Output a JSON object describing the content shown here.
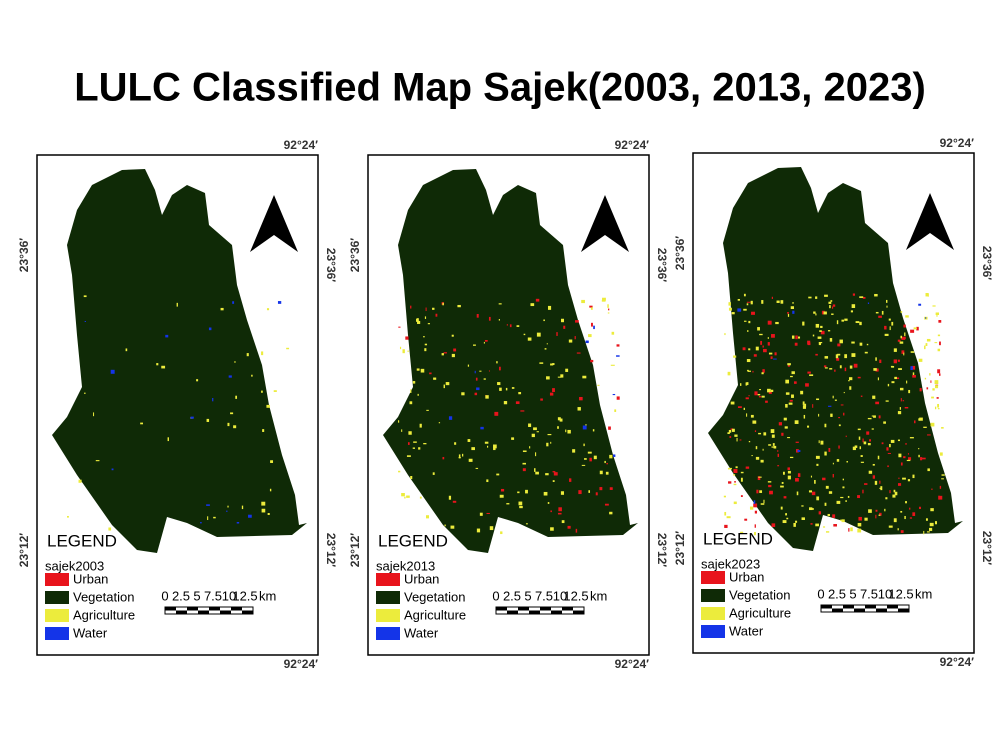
{
  "title": "LULC Classified Map Sajek(2003,  2013,  2023)",
  "panels": [
    {
      "top_longitude": "92°24′",
      "bottom_longitude": "92°24′",
      "left_latitudes": [
        "23°36′",
        "23°12′"
      ],
      "right_latitudes": [
        "23°36′",
        "23°12′"
      ],
      "legend_title": "LEGEND",
      "layer_name": "sajek2003",
      "legend_items": [
        {
          "label": "Urban",
          "color": "#e8141c"
        },
        {
          "label": "Vegetation",
          "color": "#0f2a06"
        },
        {
          "label": "Agriculture",
          "color": "#ecec3c"
        },
        {
          "label": "Water",
          "color": "#1434e8"
        }
      ],
      "scale_labels": [
        "0",
        "2.5",
        "5",
        "7.5",
        "10",
        "12.5"
      ],
      "scale_unit": "km"
    },
    {
      "top_longitude": "92°24′",
      "bottom_longitude": "92°24′",
      "left_latitudes": [
        "23°36′",
        "23°12′"
      ],
      "right_latitudes": [
        "23°36′",
        "23°12′"
      ],
      "legend_title": "LEGEND",
      "layer_name": "sajek2013",
      "legend_items": [
        {
          "label": "Urban",
          "color": "#e8141c"
        },
        {
          "label": "Vegetation",
          "color": "#0f2a06"
        },
        {
          "label": "Agriculture",
          "color": "#ecec3c"
        },
        {
          "label": "Water",
          "color": "#1434e8"
        }
      ],
      "scale_labels": [
        "0",
        "2.5",
        "5",
        "7.5",
        "10",
        "12.5"
      ],
      "scale_unit": "km"
    },
    {
      "top_longitude": "92°24′",
      "bottom_longitude": "92°24′",
      "left_latitudes": [
        "23°36′",
        "23°12′"
      ],
      "right_latitudes": [
        "23°36′",
        "23°12′"
      ],
      "legend_title": "LEGEND",
      "layer_name": "sajek2023",
      "legend_items": [
        {
          "label": "Urban",
          "color": "#e8141c"
        },
        {
          "label": "Vegetation",
          "color": "#0f2a06"
        },
        {
          "label": "Agriculture",
          "color": "#ecec3c"
        },
        {
          "label": "Water",
          "color": "#1434e8"
        }
      ],
      "scale_labels": [
        "0",
        "2.5",
        "5",
        "7.5",
        "10",
        "12.5"
      ],
      "scale_unit": "km"
    }
  ]
}
